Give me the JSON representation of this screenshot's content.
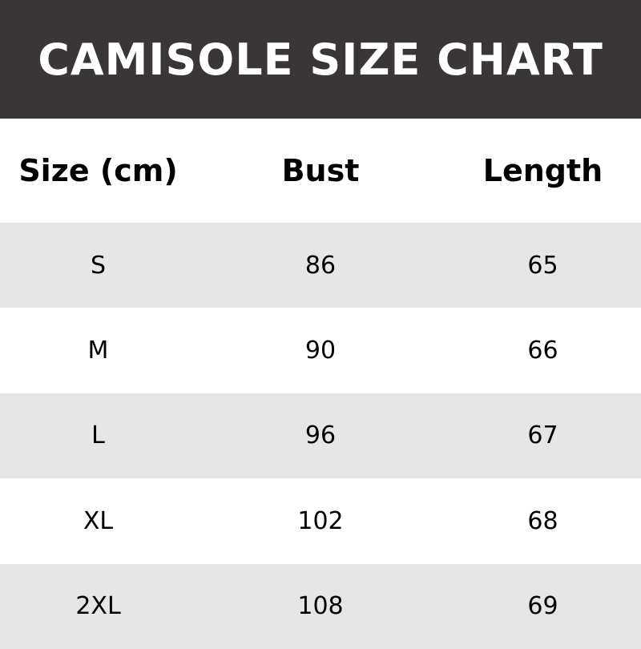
{
  "chart_data": {
    "type": "table",
    "title": "CAMISOLE SIZE CHART",
    "columns": [
      "Size (cm)",
      "Bust",
      "Length"
    ],
    "rows": [
      [
        "S",
        "86",
        "65"
      ],
      [
        "M",
        "90",
        "66"
      ],
      [
        "L",
        "96",
        "67"
      ],
      [
        "XL",
        "102",
        "68"
      ],
      [
        "2XL",
        "108",
        "69"
      ]
    ],
    "colors": {
      "header_bg": "#3a3536",
      "stripe": "#e6e6e6"
    }
  }
}
